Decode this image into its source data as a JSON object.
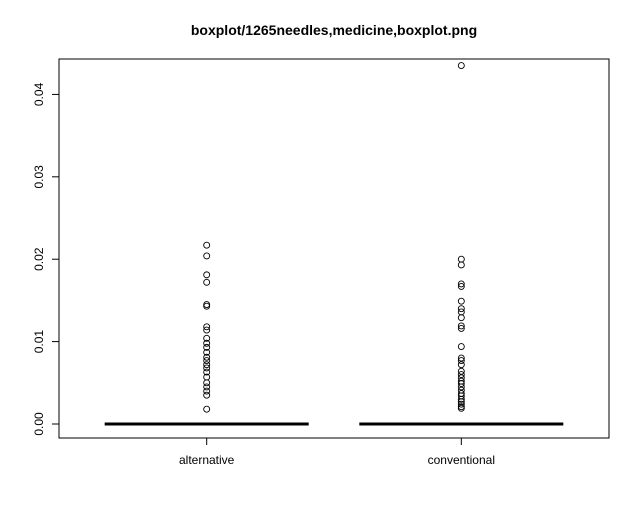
{
  "chart_data": {
    "type": "boxplot",
    "title": "boxplot/1265needles,medicine,boxplot.png",
    "xlabel": "",
    "ylabel": "",
    "categories": [
      "alternative",
      "conventional"
    ],
    "ylim": [
      -0.0017,
      0.0443
    ],
    "yticks": [
      {
        "value": 0.0,
        "label": "0.00"
      },
      {
        "value": 0.01,
        "label": "0.01"
      },
      {
        "value": 0.02,
        "label": "0.02"
      },
      {
        "value": 0.03,
        "label": "0.03"
      },
      {
        "value": 0.04,
        "label": "0.04"
      }
    ],
    "grid": false,
    "legend": "none",
    "boxes": [
      {
        "name": "alternative",
        "min": 0,
        "q1": 0,
        "median": 0,
        "q3": 0,
        "max": 0,
        "outliers": [
          0.0018,
          0.0035,
          0.004,
          0.0045,
          0.005,
          0.0057,
          0.0063,
          0.0068,
          0.0072,
          0.0077,
          0.0081,
          0.0087,
          0.0093,
          0.0098,
          0.0104,
          0.0114,
          0.0118,
          0.0143,
          0.0145,
          0.0172,
          0.0181,
          0.0204,
          0.0217
        ]
      },
      {
        "name": "conventional",
        "min": 0,
        "q1": 0,
        "median": 0,
        "q3": 0,
        "max": 0,
        "outliers": [
          0.0019,
          0.0021,
          0.0024,
          0.0027,
          0.003,
          0.0034,
          0.0037,
          0.0041,
          0.0045,
          0.0049,
          0.0052,
          0.0056,
          0.006,
          0.0064,
          0.0072,
          0.0077,
          0.008,
          0.0094,
          0.0116,
          0.0119,
          0.0129,
          0.0136,
          0.014,
          0.0149,
          0.0167,
          0.017,
          0.0193,
          0.02,
          0.0435
        ]
      }
    ]
  }
}
